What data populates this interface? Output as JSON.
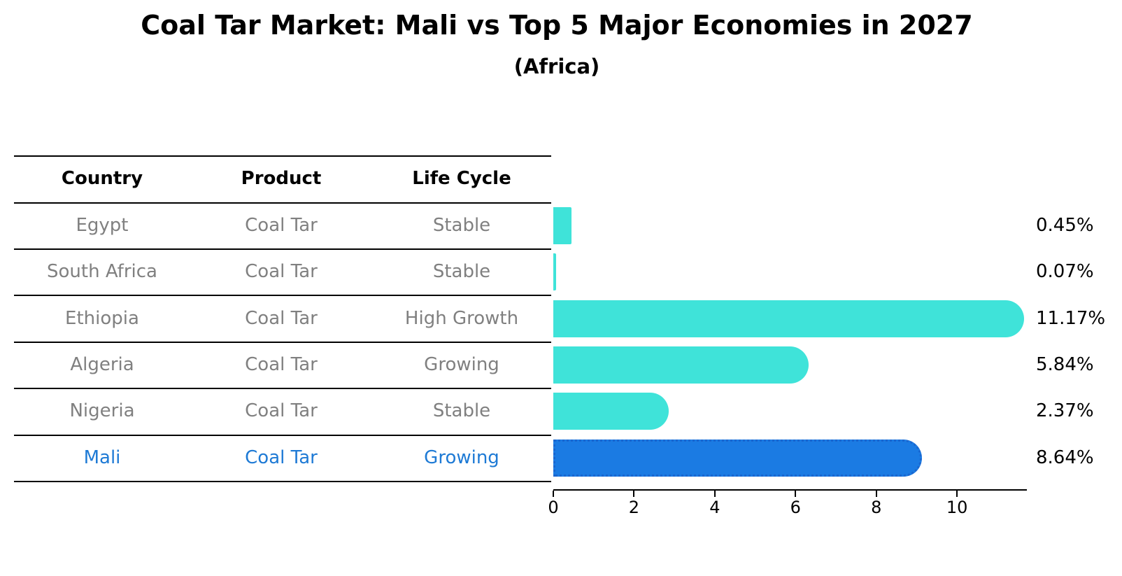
{
  "title": "Coal Tar Market: Mali vs Top 5 Major Economies in 2027",
  "subtitle": "(Africa)",
  "table": {
    "headers": {
      "country": "Country",
      "product": "Product",
      "life_cycle": "Life Cycle"
    },
    "rows": [
      {
        "country": "Egypt",
        "product": "Coal Tar",
        "life_cycle": "Stable",
        "highlight": false
      },
      {
        "country": "South Africa",
        "product": "Coal Tar",
        "life_cycle": "Stable",
        "highlight": false
      },
      {
        "country": "Ethiopia",
        "product": "Coal Tar",
        "life_cycle": "High Growth",
        "highlight": false
      },
      {
        "country": "Algeria",
        "product": "Coal Tar",
        "life_cycle": "Growing",
        "highlight": false
      },
      {
        "country": "Nigeria",
        "product": "Coal Tar",
        "life_cycle": "Stable",
        "highlight": false
      },
      {
        "country": "Mali",
        "product": "Coal Tar",
        "life_cycle": "Growing",
        "highlight": true
      }
    ]
  },
  "chart_data": {
    "type": "bar",
    "orientation": "horizontal",
    "title": "Coal Tar Market: Mali vs Top 5 Major Economies in 2027",
    "subtitle": "(Africa)",
    "categories": [
      "Egypt",
      "South Africa",
      "Ethiopia",
      "Algeria",
      "Nigeria",
      "Mali"
    ],
    "values": [
      0.45,
      0.07,
      11.17,
      5.84,
      2.37,
      8.64
    ],
    "value_labels": [
      "0.45%",
      "0.07%",
      "11.17%",
      "5.84%",
      "2.37%",
      "8.64%"
    ],
    "x_ticks": [
      0,
      2,
      4,
      6,
      8,
      10
    ],
    "xlim": [
      0,
      11.73
    ],
    "grid": false,
    "legend": false,
    "bar_color": "#3FE3D9",
    "highlight_color": "#1B7BE3",
    "highlight_border_color": "#1A66CF",
    "highlight_index": 5
  },
  "colors": {
    "background": "#ffffff",
    "table_text": "#808080",
    "table_header_text": "#000000",
    "highlight_text": "#1E7AD5",
    "axis": "#000000"
  }
}
